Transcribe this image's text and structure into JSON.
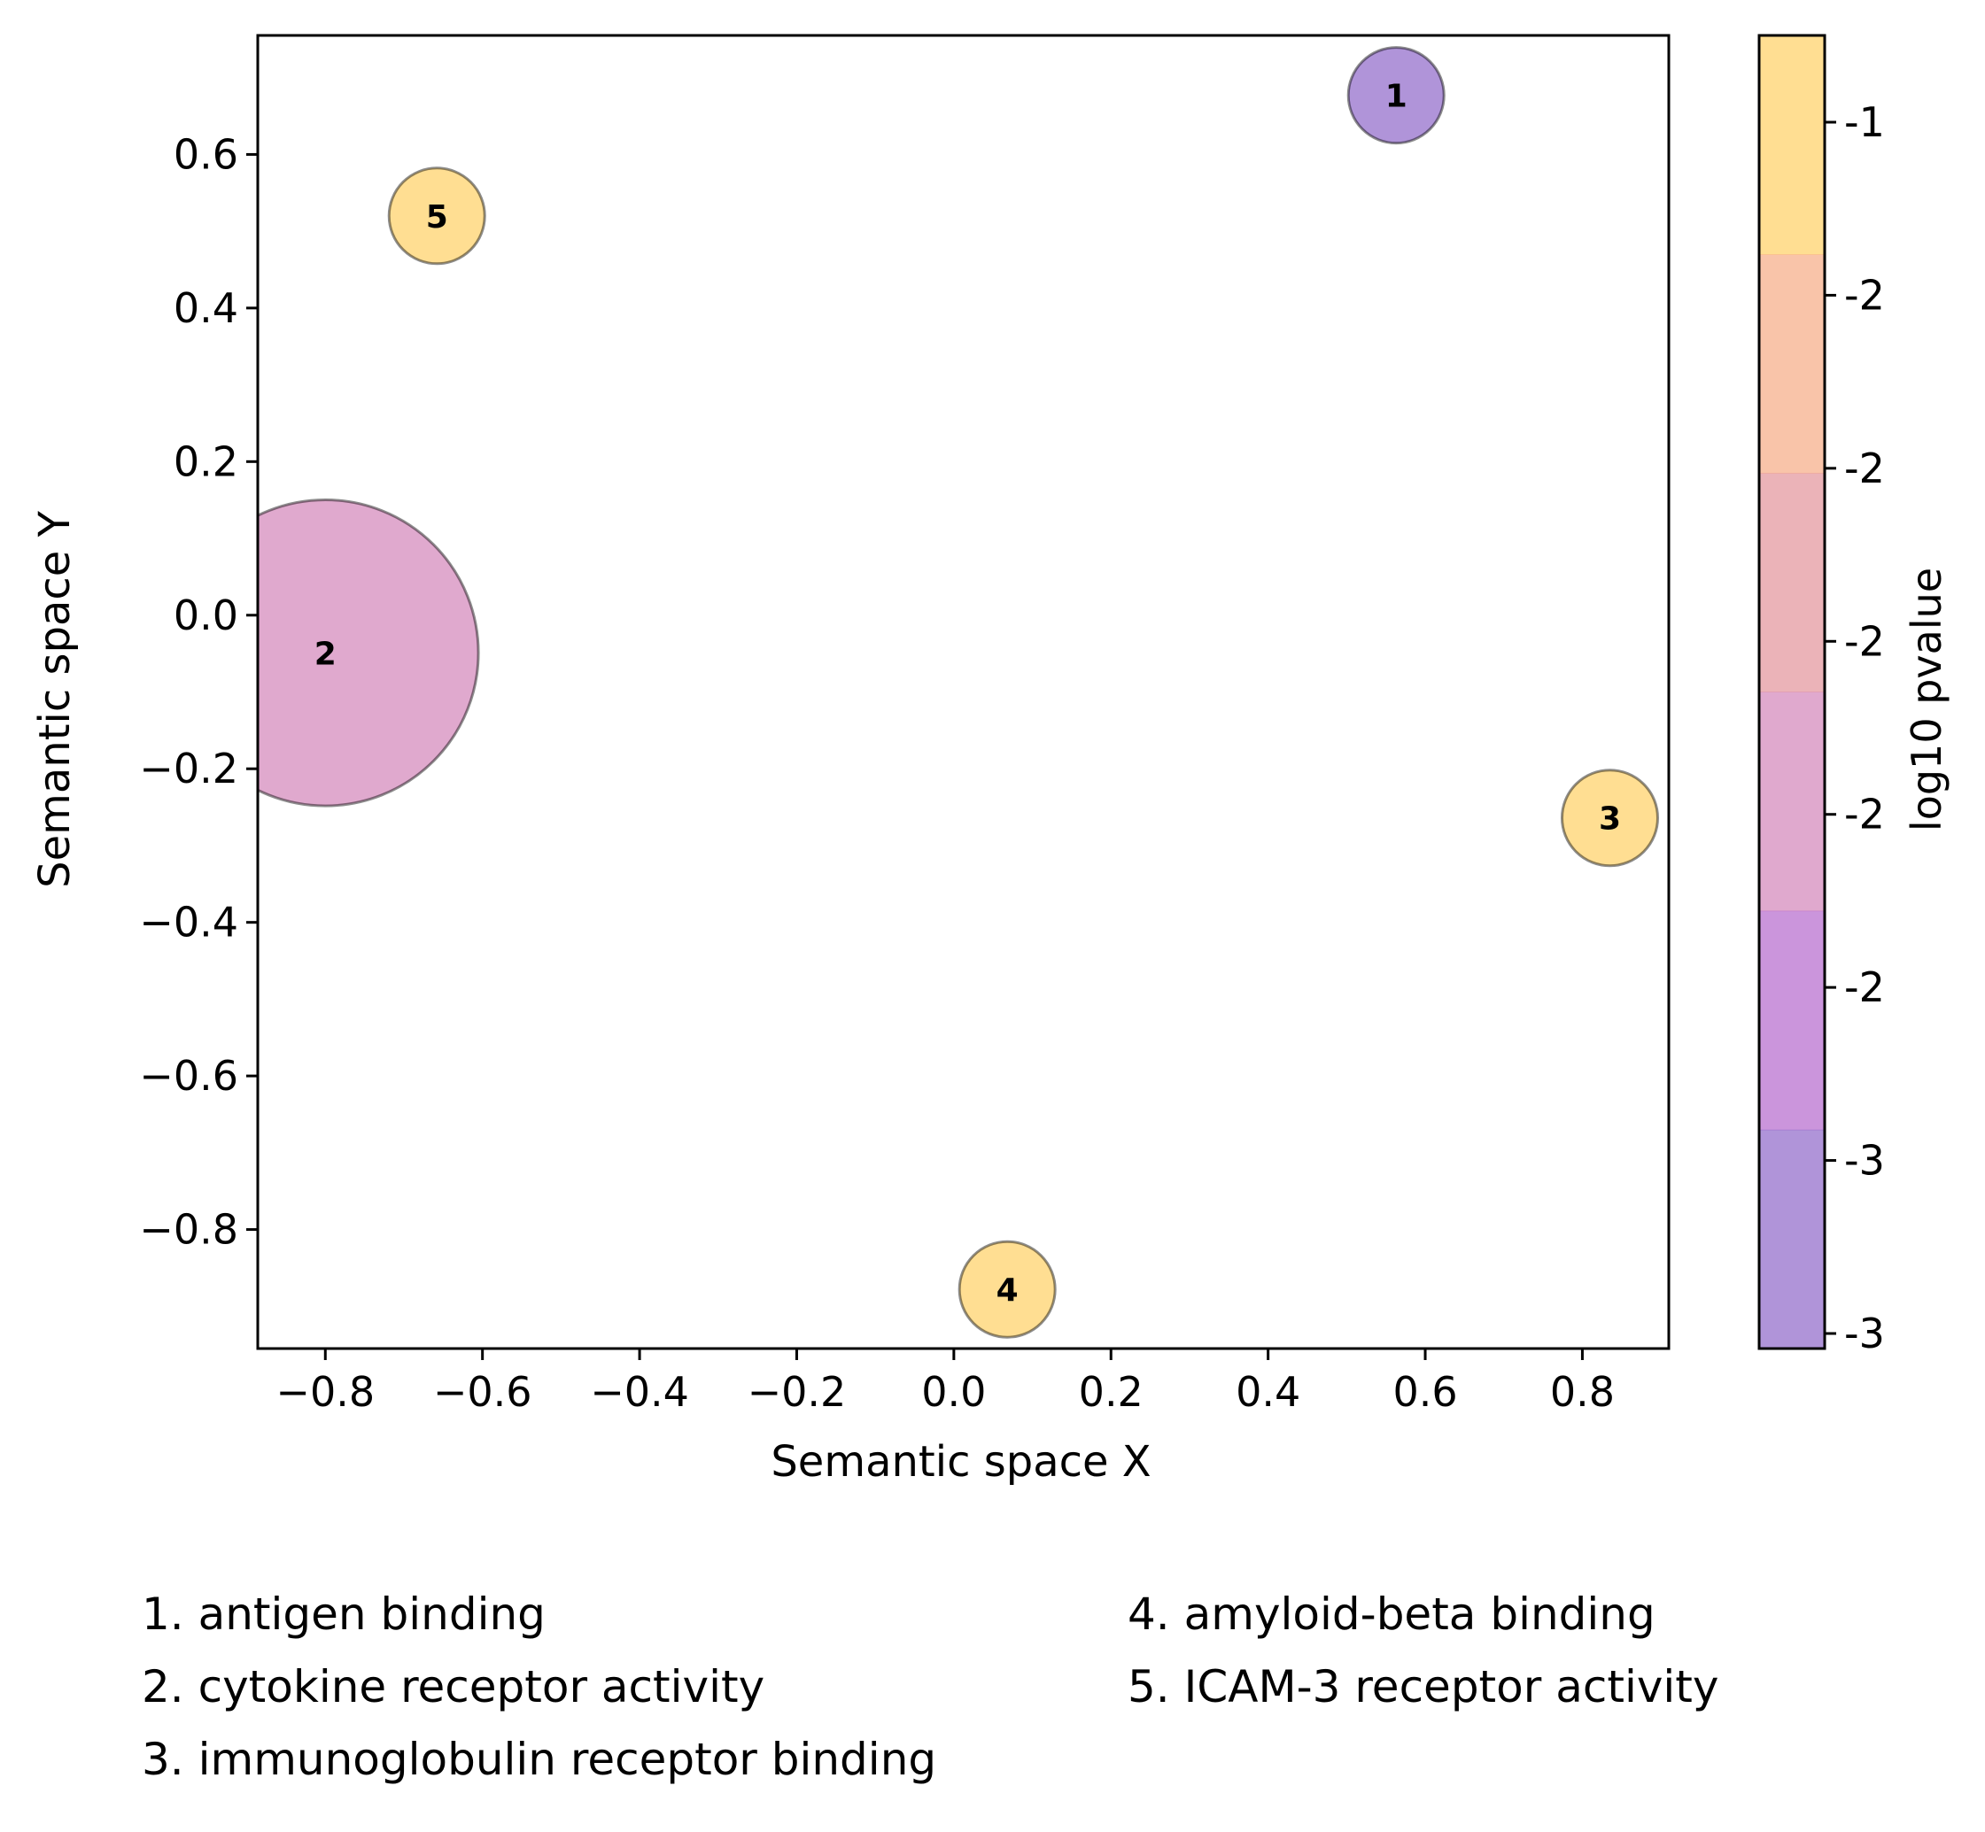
{
  "chart_data": {
    "type": "scatter",
    "xlabel": "Semantic space X",
    "ylabel": "Semantic space Y",
    "xlim": [
      -0.886,
      0.91
    ],
    "ylim": [
      -0.955,
      0.755
    ],
    "xticks": [
      -0.8,
      -0.6,
      -0.4,
      -0.2,
      0.0,
      0.2,
      0.4,
      0.6,
      0.8
    ],
    "xtick_labels": [
      "−0.8",
      "−0.6",
      "−0.4",
      "−0.2",
      "0.0",
      "0.2",
      "0.4",
      "0.6",
      "0.8"
    ],
    "yticks": [
      0.6,
      0.4,
      0.2,
      0.0,
      -0.2,
      -0.4,
      -0.6,
      -0.8
    ],
    "ytick_labels": [
      "0.6",
      "0.4",
      "0.2",
      "0.0",
      "−0.2",
      "−0.4",
      "−0.6",
      "−0.8"
    ],
    "grid": false,
    "points": [
      {
        "label": "1",
        "x": 0.563,
        "y": 0.677,
        "relative_size": 1.0,
        "color": "#7b4cbf"
      },
      {
        "label": "2",
        "x": -0.8,
        "y": -0.049,
        "relative_size": 3.2,
        "color": "#cc6fae"
      },
      {
        "label": "3",
        "x": 0.835,
        "y": -0.264,
        "relative_size": 1.0,
        "color": "#ffc849"
      },
      {
        "label": "4",
        "x": 0.068,
        "y": -0.878,
        "relative_size": 1.0,
        "color": "#ffc849"
      },
      {
        "label": "5",
        "x": -0.658,
        "y": 0.52,
        "relative_size": 1.0,
        "color": "#ffc849"
      }
    ],
    "colorbar": {
      "label": "log10 pvalue",
      "tick_labels": [
        "-1",
        "-2",
        "-2",
        "-2",
        "-2",
        "-2",
        "-3",
        "-3"
      ],
      "bands_top_to_bottom": [
        "#ffc849",
        "#f59d6f",
        "#dd8188",
        "#cc6fae",
        "#a94ec5",
        "#7b4cbf"
      ]
    },
    "legend": [
      "1. antigen binding",
      "2. cytokine receptor activity",
      "3. immunoglobulin receptor binding",
      "4. amyloid-beta binding",
      "5. ICAM-3 receptor activity"
    ]
  }
}
